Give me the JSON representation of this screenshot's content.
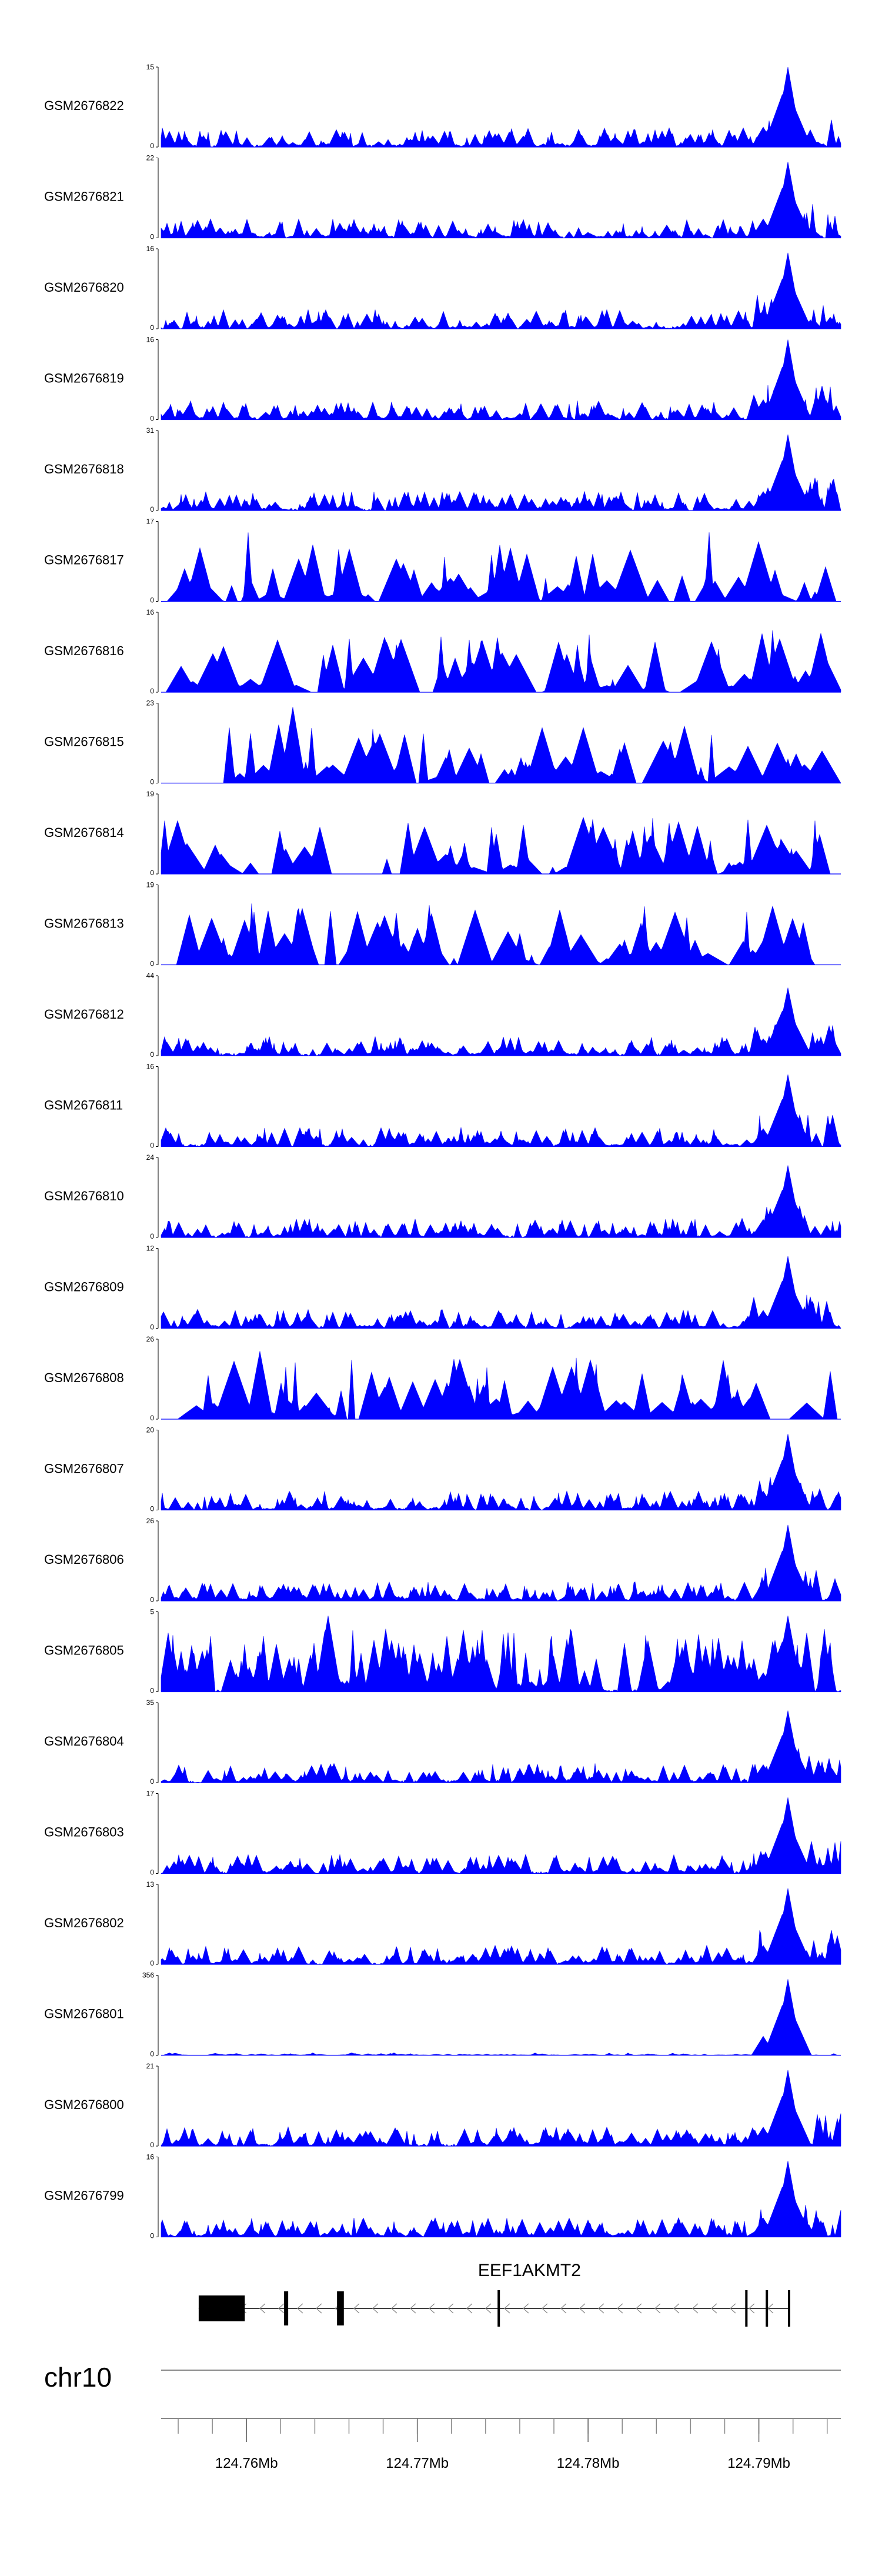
{
  "chart_data": {
    "type": "area",
    "title": "",
    "xlabel": "",
    "ylabel": "",
    "chromosome": "chr10",
    "x_range_mb": [
      124.755,
      124.7948
    ],
    "x_ticks": [
      {
        "value": 124.76,
        "label": "124.76Mb"
      },
      {
        "value": 124.77,
        "label": "124.77Mb"
      },
      {
        "value": 124.78,
        "label": "124.78Mb"
      },
      {
        "value": 124.79,
        "label": "124.79Mb"
      }
    ],
    "series_color": "#0000ff",
    "series": [
      {
        "name": "GSM2676822",
        "ymax": "15",
        "ymin": "0",
        "style": "dense",
        "peak": 1.0,
        "extra_peaks": []
      },
      {
        "name": "GSM2676821",
        "ymax": "22",
        "ymin": "0",
        "style": "dense",
        "peak": 0.95,
        "extra_peaks": []
      },
      {
        "name": "GSM2676820",
        "ymax": "16",
        "ymin": "0",
        "style": "dense",
        "peak": 0.95,
        "extra_peaks": []
      },
      {
        "name": "GSM2676819",
        "ymax": "16",
        "ymin": "0",
        "style": "dense",
        "peak": 1.0,
        "extra_peaks": []
      },
      {
        "name": "GSM2676818",
        "ymax": "31",
        "ymin": "0",
        "style": "dense",
        "peak": 0.95,
        "extra_peaks": []
      },
      {
        "name": "GSM2676817",
        "ymax": "17",
        "ymin": "0",
        "style": "sparse",
        "peak": 0.8,
        "extra_peaks": []
      },
      {
        "name": "GSM2676816",
        "ymax": "16",
        "ymin": "0",
        "style": "sparse",
        "peak": 0.6,
        "extra_peaks": []
      },
      {
        "name": "GSM2676815",
        "ymax": "23",
        "ymin": "0",
        "style": "sparse",
        "peak": 0.4,
        "extra_peaks": [
          {
            "pos": 124.7627,
            "h": 0.95
          }
        ]
      },
      {
        "name": "GSM2676814",
        "ymax": "19",
        "ymin": "0",
        "style": "sparse",
        "peak": 0.6,
        "extra_peaks": []
      },
      {
        "name": "GSM2676813",
        "ymax": "19",
        "ymin": "0",
        "style": "sparse",
        "peak": 0.6,
        "extra_peaks": []
      },
      {
        "name": "GSM2676812",
        "ymax": "44",
        "ymin": "0",
        "style": "dense",
        "peak": 0.85,
        "extra_peaks": []
      },
      {
        "name": "GSM2676811",
        "ymax": "16",
        "ymin": "0",
        "style": "dense",
        "peak": 0.9,
        "extra_peaks": []
      },
      {
        "name": "GSM2676810",
        "ymax": "24",
        "ymin": "0",
        "style": "dense",
        "peak": 0.9,
        "extra_peaks": []
      },
      {
        "name": "GSM2676809",
        "ymax": "12",
        "ymin": "0",
        "style": "dense",
        "peak": 0.9,
        "extra_peaks": []
      },
      {
        "name": "GSM2676808",
        "ymax": "26",
        "ymin": "0",
        "style": "sparse",
        "peak": 0.6,
        "extra_peaks": [
          {
            "pos": 124.7608,
            "h": 0.85
          }
        ]
      },
      {
        "name": "GSM2676807",
        "ymax": "20",
        "ymin": "0",
        "style": "dense",
        "peak": 0.95,
        "extra_peaks": []
      },
      {
        "name": "GSM2676806",
        "ymax": "26",
        "ymin": "0",
        "style": "dense",
        "peak": 0.95,
        "extra_peaks": []
      },
      {
        "name": "GSM2676805",
        "ymax": "5",
        "ymin": "0",
        "style": "busy",
        "peak": 0.95,
        "extra_peaks": [
          {
            "pos": 124.7648,
            "h": 0.95
          }
        ]
      },
      {
        "name": "GSM2676804",
        "ymax": "35",
        "ymin": "0",
        "style": "dense",
        "peak": 0.9,
        "extra_peaks": []
      },
      {
        "name": "GSM2676803",
        "ymax": "17",
        "ymin": "0",
        "style": "dense",
        "peak": 0.95,
        "extra_peaks": []
      },
      {
        "name": "GSM2676802",
        "ymax": "13",
        "ymin": "0",
        "style": "dense",
        "peak": 0.95,
        "extra_peaks": []
      },
      {
        "name": "GSM2676801",
        "ymax": "356",
        "ymin": "0",
        "style": "flat",
        "peak": 0.95,
        "extra_peaks": []
      },
      {
        "name": "GSM2676800",
        "ymax": "21",
        "ymin": "0",
        "style": "dense",
        "peak": 0.95,
        "extra_peaks": []
      },
      {
        "name": "GSM2676799",
        "ymax": "16",
        "ymin": "0",
        "style": "dense",
        "peak": 0.95,
        "extra_peaks": []
      }
    ],
    "main_peak_position_mb": 124.7917,
    "gene": {
      "name": "EEF1AKMT2",
      "strand": "-",
      "start_mb": 124.7572,
      "end_mb": 124.7918,
      "exons": [
        {
          "start": 124.7572,
          "end": 124.7599,
          "thick": true
        },
        {
          "start": 124.7622,
          "end": 124.7624,
          "thick": true
        },
        {
          "start": 124.7653,
          "end": 124.7657,
          "thick": true
        },
        {
          "start": 124.7747,
          "end": 124.7748,
          "thick": false
        },
        {
          "start": 124.7892,
          "end": 124.7893,
          "thick": false
        },
        {
          "start": 124.7904,
          "end": 124.7905,
          "thick": false
        },
        {
          "start": 124.7917,
          "end": 124.7918,
          "thick": false
        }
      ]
    }
  }
}
